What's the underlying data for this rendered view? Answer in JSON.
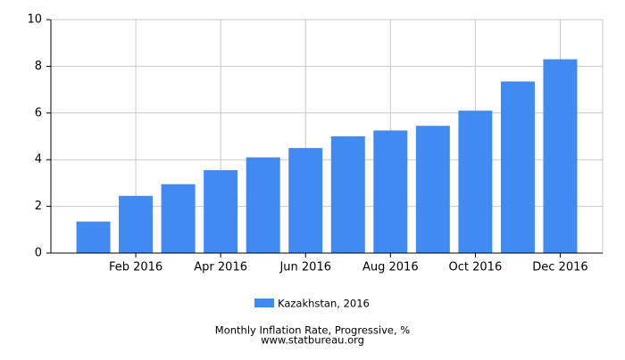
{
  "chart_data": {
    "type": "bar",
    "title": "Monthly Inflation Rate, Progressive, %",
    "source": "www.statbureau.org",
    "categories": [
      null,
      "Feb 2016",
      null,
      "Apr 2016",
      null,
      "Jun 2016",
      null,
      "Aug 2016",
      null,
      "Oct 2016",
      null,
      "Dec 2016"
    ],
    "series": [
      {
        "name": "Kazakhstan, 2016",
        "color": "#418af1",
        "values": [
          1.35,
          2.45,
          2.95,
          3.55,
          4.1,
          4.5,
          5.0,
          5.25,
          5.45,
          6.1,
          7.35,
          8.3
        ]
      }
    ],
    "ylim": [
      0,
      10
    ],
    "yticks": [
      0,
      2,
      4,
      6,
      8,
      10
    ],
    "grid": true
  }
}
